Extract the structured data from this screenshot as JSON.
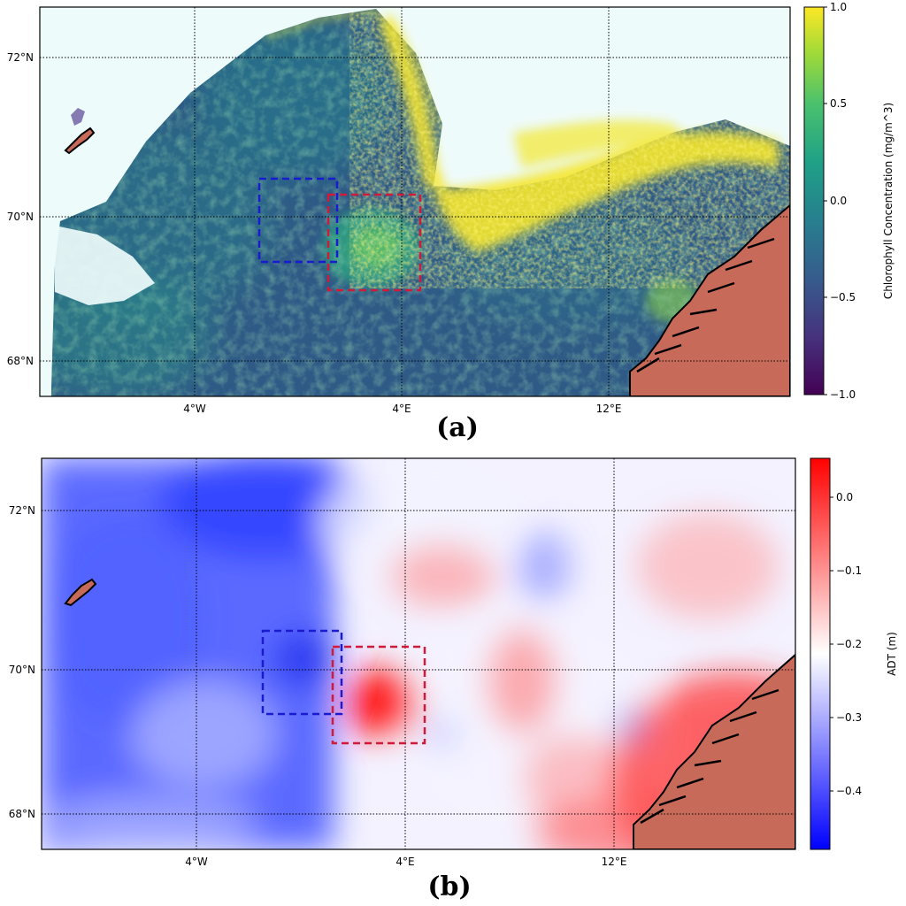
{
  "panels": [
    {
      "label": "(a)",
      "variable": "chlorophyll",
      "colormap": "viridis",
      "colorbar": {
        "label": "Chlorophyll Concentration (mg/m^3)",
        "ticks": [
          "1.0",
          "0.5",
          "0.0",
          "−0.5",
          "−1.0"
        ],
        "range": [
          -1.0,
          1.0
        ]
      },
      "lat_labels": [
        "72°N",
        "70°N",
        "68°N"
      ],
      "lon_labels": [
        "4°W",
        "4°E",
        "12°E"
      ],
      "boxes": [
        {
          "color": "#1a1ad0",
          "style": "dashed"
        },
        {
          "color": "#d01a3a",
          "style": "dashed"
        }
      ]
    },
    {
      "label": "(b)",
      "variable": "ADT",
      "colormap": "bwr",
      "colorbar": {
        "label": "ADT (m)",
        "ticks": [
          "0.0",
          "−0.1",
          "−0.2",
          "−0.3",
          "−0.4"
        ],
        "range": [
          -0.48,
          0.05
        ]
      },
      "lat_labels": [
        "72°N",
        "70°N",
        "68°N"
      ],
      "lon_labels": [
        "4°W",
        "4°E",
        "12°E"
      ],
      "boxes": [
        {
          "color": "#1a1ad0",
          "style": "dashed"
        },
        {
          "color": "#d01a3a",
          "style": "dashed"
        }
      ]
    }
  ],
  "land_color": "#c86a5a"
}
